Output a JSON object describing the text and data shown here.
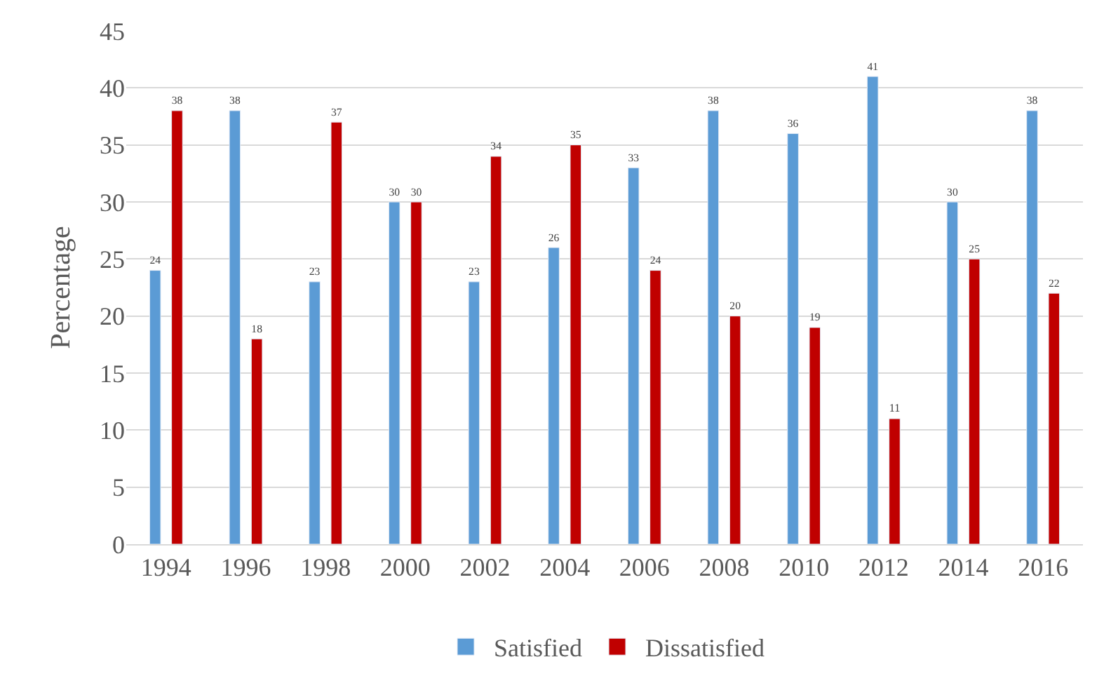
{
  "chart_data": {
    "type": "bar",
    "ylabel": "Percentage",
    "categories": [
      "1994",
      "1996",
      "1998",
      "2000",
      "2002",
      "2004",
      "2006",
      "2008",
      "2010",
      "2012",
      "2014",
      "2016"
    ],
    "series": [
      {
        "name": "Satisfied",
        "color": "#5b9bd5",
        "values": [
          24,
          38,
          23,
          30,
          23,
          26,
          33,
          38,
          36,
          41,
          30,
          38
        ]
      },
      {
        "name": "Dissatisfied",
        "color": "#c00000",
        "values": [
          38,
          18,
          37,
          30,
          34,
          35,
          24,
          20,
          19,
          11,
          25,
          22
        ]
      }
    ],
    "ylim": [
      0,
      45
    ],
    "yticks": [
      0,
      5,
      10,
      15,
      20,
      25,
      30,
      35,
      40,
      45
    ],
    "grid": "y",
    "legend": "bottom",
    "data_labels": true
  }
}
